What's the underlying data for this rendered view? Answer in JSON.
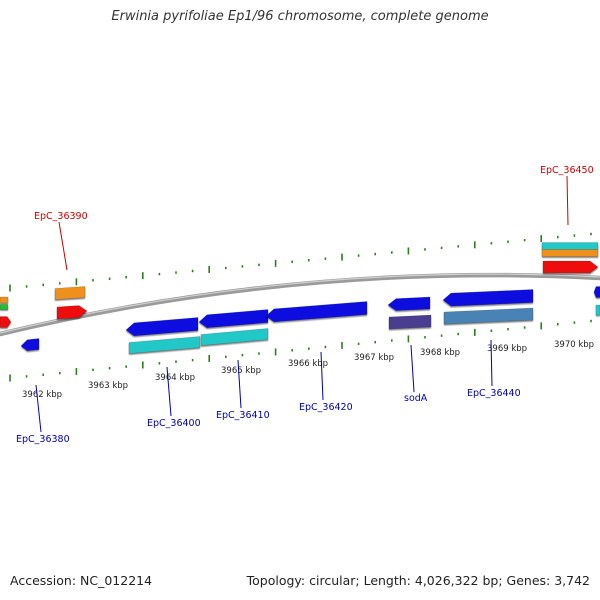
{
  "header": {
    "title": "Erwinia pyrifoliae Ep1/96 chromosome, complete genome"
  },
  "footer": {
    "accession": "Accession: NC_012214",
    "summary": "Topology: circular; Length: 4,026,322 bp; Genes: 3,742"
  },
  "colors": {
    "backbone": "#8a8a8a",
    "tick": "#2e7d1f",
    "gene_blue": "#1010e0",
    "cds_cyan": "#20c8c8",
    "steel": "#4a82b4",
    "indigo": "#4a3d8f",
    "orange": "#f0901a",
    "red": "#ee1111",
    "green": "#22c030",
    "label_red": "#cc0000",
    "label_blue": "#0000b0"
  },
  "chart_data": {
    "type": "genome-map",
    "scale_labels": [
      "3962 kbp",
      "3963 kbp",
      "3964 kbp",
      "3965 kbp",
      "3966 kbp",
      "3967 kbp",
      "3968 kbp",
      "3969 kbp",
      "3970 kbp"
    ],
    "gene_labels": [
      {
        "text": "EpC_36390",
        "strand": "forward"
      },
      {
        "text": "EpC_36450",
        "strand": "forward"
      },
      {
        "text": "EpC_36380",
        "strand": "reverse"
      },
      {
        "text": "EpC_36400",
        "strand": "reverse"
      },
      {
        "text": "EpC_36410",
        "strand": "reverse"
      },
      {
        "text": "EpC_36420",
        "strand": "reverse"
      },
      {
        "text": "sodA",
        "strand": "reverse"
      },
      {
        "text": "EpC_36440",
        "strand": "reverse"
      }
    ]
  }
}
